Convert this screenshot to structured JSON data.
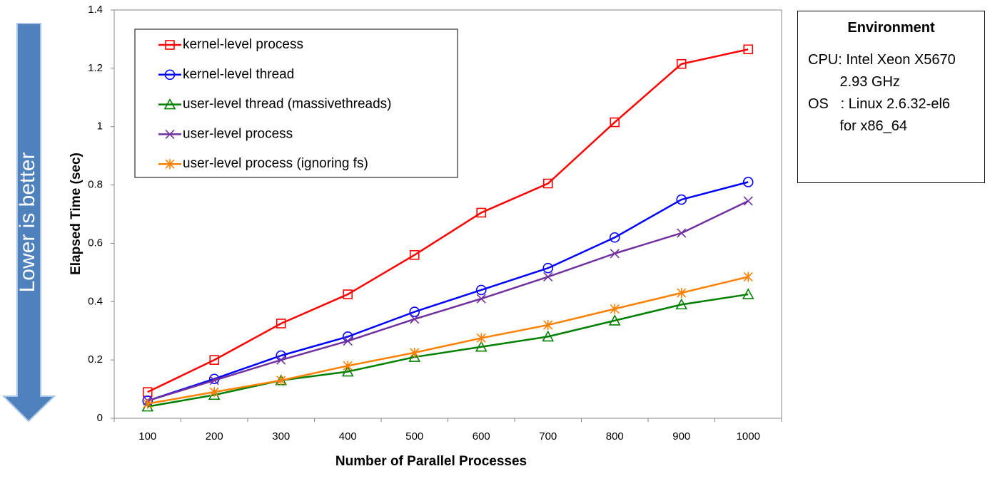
{
  "arrow": {
    "label": "Lower is better",
    "color": "#4f81bd"
  },
  "environment": {
    "title": "Environment",
    "lines": [
      "CPU: Intel Xeon X5670",
      "        2.93 GHz",
      "OS   : Linux 2.6.32-el6",
      "        for x86_64"
    ]
  },
  "chart_data": {
    "type": "line",
    "xlabel": "Number of Parallel Processes",
    "ylabel": "Elapsed Time (sec)",
    "x": [
      100,
      200,
      300,
      400,
      500,
      600,
      700,
      800,
      900,
      1000
    ],
    "xticks": [
      "100",
      "200",
      "300",
      "400",
      "500",
      "600",
      "700",
      "800",
      "900",
      "1000"
    ],
    "ylim": [
      0,
      1.4
    ],
    "yticks": [
      "0",
      "0.2",
      "0.4",
      "0.6",
      "0.8",
      "1",
      "1.2",
      "1.4"
    ],
    "grid": false,
    "legend_position": "top-left",
    "series": [
      {
        "name": "kernel-level process",
        "color": "#ff0000",
        "marker": "square",
        "values": [
          0.09,
          0.2,
          0.325,
          0.425,
          0.56,
          0.705,
          0.805,
          1.015,
          1.215,
          1.265
        ]
      },
      {
        "name": "kernel-level thread",
        "color": "#0000ff",
        "marker": "circle",
        "values": [
          0.06,
          0.135,
          0.215,
          0.28,
          0.365,
          0.44,
          0.515,
          0.62,
          0.75,
          0.81
        ]
      },
      {
        "name": "user-level thread (massivethreads)",
        "color": "#008000",
        "marker": "triangle",
        "values": [
          0.04,
          0.08,
          0.13,
          0.16,
          0.21,
          0.245,
          0.28,
          0.335,
          0.39,
          0.425
        ]
      },
      {
        "name": "user-level process",
        "color": "#7030a0",
        "marker": "x",
        "values": [
          0.06,
          0.13,
          0.2,
          0.265,
          0.34,
          0.41,
          0.485,
          0.565,
          0.635,
          0.745
        ]
      },
      {
        "name": "user-level process (ignoring fs)",
        "color": "#ff8000",
        "marker": "asterisk",
        "values": [
          0.05,
          0.09,
          0.13,
          0.18,
          0.225,
          0.275,
          0.32,
          0.375,
          0.43,
          0.485
        ]
      }
    ]
  }
}
